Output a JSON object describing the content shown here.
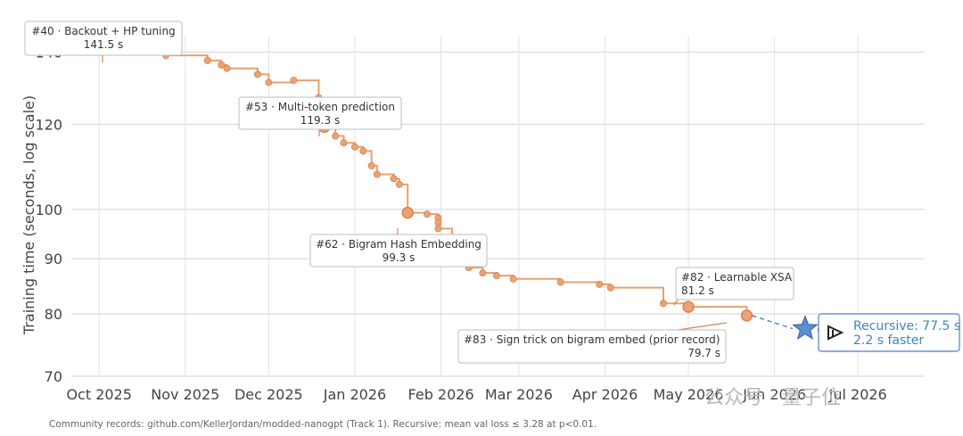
{
  "chart_data": {
    "type": "line",
    "ylabel": "Training time (seconds, log scale)",
    "y_scale": "log",
    "ylim": [
      70,
      145
    ],
    "y_ticks": [
      70,
      80,
      90,
      100,
      120,
      140
    ],
    "x_ticks": [
      {
        "label": "Oct 2025",
        "date": "2025-10-01"
      },
      {
        "label": "Nov 2025",
        "date": "2025-11-01"
      },
      {
        "label": "Dec 2025",
        "date": "2025-12-01"
      },
      {
        "label": "Jan 2026",
        "date": "2026-01-01"
      },
      {
        "label": "Feb 2026",
        "date": "2026-02-01"
      },
      {
        "label": "Mar 2026",
        "date": "2026-03-01"
      },
      {
        "label": "Apr 2026",
        "date": "2026-04-01"
      },
      {
        "label": "May 2026",
        "date": "2026-05-01"
      },
      {
        "label": "Jun 2026",
        "date": "2026-06-01"
      },
      {
        "label": "Jul 2026",
        "date": "2026-07-01"
      }
    ],
    "xlim": [
      "2025-09-21",
      "2026-07-25"
    ],
    "grid": true,
    "line_color": "#e8a06e",
    "point_color": "#eba275",
    "point_edge": "#d9824b",
    "series": [
      {
        "points": [
          {
            "x": "2025-10-03",
            "y": 141.5
          },
          {
            "x": "2025-10-22",
            "y": 141.0
          },
          {
            "x": "2025-10-25",
            "y": 139.0
          },
          {
            "x": "2025-11-09",
            "y": 137.5
          },
          {
            "x": "2025-11-14",
            "y": 136.2
          },
          {
            "x": "2025-11-16",
            "y": 135.2
          },
          {
            "x": "2025-11-27",
            "y": 133.5
          },
          {
            "x": "2025-12-01",
            "y": 131.2
          },
          {
            "x": "2025-12-10",
            "y": 131.8
          },
          {
            "x": "2025-12-19",
            "y": 127.0
          },
          {
            "x": "2025-12-20",
            "y": 124.5
          },
          {
            "x": "2025-12-20",
            "y": 121.8
          },
          {
            "x": "2025-12-21",
            "y": 119.3
          },
          {
            "x": "2025-12-25",
            "y": 117.0
          },
          {
            "x": "2025-12-28",
            "y": 115.3
          },
          {
            "x": "2026-01-01",
            "y": 114.3
          },
          {
            "x": "2026-01-04",
            "y": 113.3
          },
          {
            "x": "2026-01-07",
            "y": 109.8
          },
          {
            "x": "2026-01-09",
            "y": 107.8
          },
          {
            "x": "2026-01-15",
            "y": 106.8
          },
          {
            "x": "2026-01-17",
            "y": 105.5
          },
          {
            "x": "2026-01-20",
            "y": 99.3
          },
          {
            "x": "2026-01-27",
            "y": 99.0
          },
          {
            "x": "2026-01-31",
            "y": 98.2
          },
          {
            "x": "2026-01-31",
            "y": 97.2
          },
          {
            "x": "2026-01-31",
            "y": 96.0
          },
          {
            "x": "2026-02-05",
            "y": 89.8
          },
          {
            "x": "2026-02-06",
            "y": 89.2
          },
          {
            "x": "2026-02-11",
            "y": 88.3
          },
          {
            "x": "2026-02-16",
            "y": 87.3
          },
          {
            "x": "2026-02-21",
            "y": 86.8
          },
          {
            "x": "2026-02-27",
            "y": 86.2
          },
          {
            "x": "2026-03-16",
            "y": 85.6
          },
          {
            "x": "2026-03-30",
            "y": 85.2
          },
          {
            "x": "2026-04-03",
            "y": 84.6
          },
          {
            "x": "2026-04-22",
            "y": 81.8
          },
          {
            "x": "2026-05-01",
            "y": 81.2
          },
          {
            "x": "2026-05-22",
            "y": 79.7
          }
        ]
      }
    ],
    "highlighted": [
      {
        "x": "2025-10-03",
        "y": 141.5
      },
      {
        "x": "2025-12-21",
        "y": 119.3
      },
      {
        "x": "2026-01-20",
        "y": 99.3
      },
      {
        "x": "2026-05-01",
        "y": 81.2
      },
      {
        "x": "2026-05-22",
        "y": 79.7
      }
    ],
    "annotations": [
      {
        "title": "#40 · Backout + HP tuning",
        "value": "141.5 s",
        "x": "2025-10-03",
        "y": 141.5,
        "align": "center"
      },
      {
        "title": "#53 · Multi-token prediction",
        "value": "119.3 s",
        "x": "2025-12-21",
        "y": 119.3,
        "align": "center"
      },
      {
        "title": "#62 · Bigram Hash Embedding",
        "value": "99.3 s",
        "x": "2026-01-20",
        "y": 99.3,
        "align": "center"
      },
      {
        "title": "#82 · Learnable XSA",
        "value": "81.2 s",
        "x": "2026-05-01",
        "y": 81.2,
        "align": "left"
      },
      {
        "title": "#83 · Sign trick on bigram embed (prior record)",
        "value": "79.7 s",
        "x": "2026-05-22",
        "y": 79.7,
        "align": "right"
      }
    ],
    "recursive": {
      "x": "2026-06-12",
      "y": 77.5,
      "label_line1": "Recursive: 77.5 s",
      "label_line2": "2.2 s faster",
      "color": "#4f7fbf",
      "text_color": "#3f86b8"
    }
  },
  "footnote": "Community records: github.com/KellerJordan/modded-nanogpt (Track 1).  Recursive: mean val loss ≤ 3.28 at p<0.01.",
  "watermark": "公众号 · 量子位",
  "logo_icon": "recursive-logo-icon"
}
